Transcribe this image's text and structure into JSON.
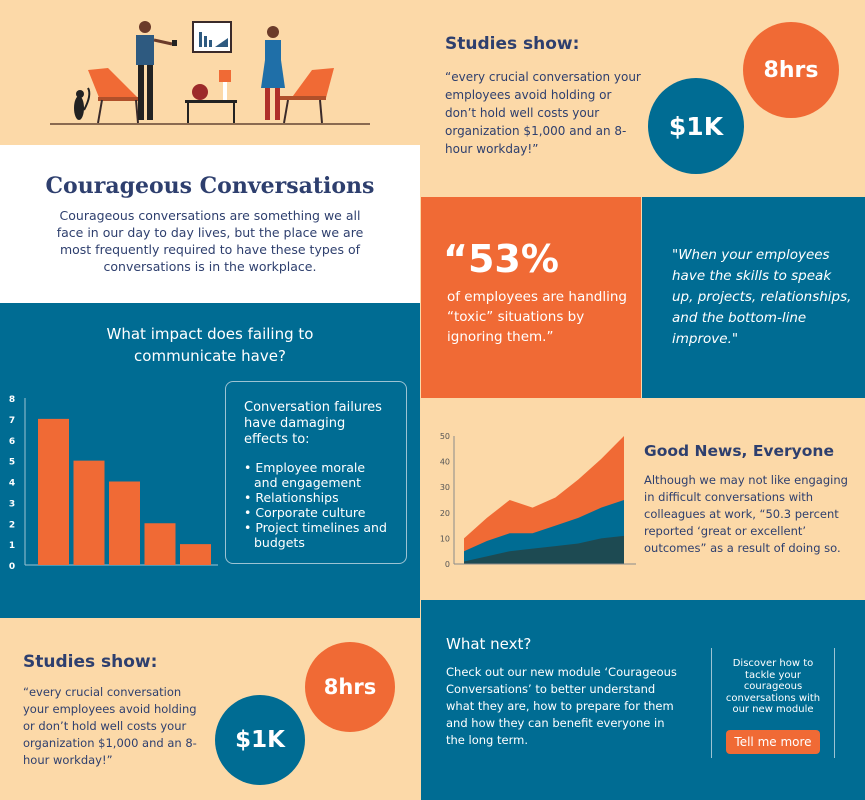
{
  "hero": {
    "title": "Courageous Conversations",
    "intro": "Courageous conversations are something we all face in our day to day lives, but the place we are most frequently required to have these types of conversations is in the workplace."
  },
  "impact": {
    "heading": "What impact does failing to communicate have?",
    "box_title": "Conversation failures have damaging effects to:",
    "effects": [
      "Employee morale and engagement",
      "Relationships",
      "Corporate culture",
      "Project timelines and budgets"
    ]
  },
  "studies_top": {
    "heading": "Studies show:",
    "quote": "“every crucial conversation your employees avoid holding or don’t hold well costs your organization $1,000 and an 8-hour workday!”",
    "stat_hours": "8hrs",
    "stat_cost": "$1K"
  },
  "studies_bottom": {
    "heading": "Studies show:",
    "quote": "“every crucial conversation your employees avoid holding or don’t hold well costs your organization $1,000 and an 8-hour workday!”",
    "stat_hours": "8hrs",
    "stat_cost": "$1K"
  },
  "toxic": {
    "stat": "“53%",
    "text": "of employees are handling “toxic” situations by ignoring them.”"
  },
  "skills_quote": "\"When your employees have the skills to speak up, projects, relationships, and the bottom-line improve.\"",
  "good_news": {
    "heading": "Good News, Everyone",
    "text": "Although we may not like engaging in difficult conversations with colleagues at work, “50.3 percent reported ‘great or excellent’ outcomes” as a result of doing so."
  },
  "what_next": {
    "heading": "What next?",
    "text": "Check out our new module ‘Courageous Conversations’ to better understand what they are, how to prepare for them and how they can benefit everyone in the long term.",
    "cta_text": "Discover how to tackle your courageous conversations with our new module",
    "cta_button": "Tell me more"
  },
  "colors": {
    "peach": "#fcd9a8",
    "blue": "#006c93",
    "orange": "#f06a35",
    "navy": "#2e3f6e",
    "dark_teal": "#1d4a52"
  },
  "chart_data": [
    {
      "type": "bar",
      "values": [
        7,
        5,
        4,
        2,
        1
      ],
      "ylim": [
        0,
        8
      ],
      "yticks": [
        0,
        1,
        2,
        3,
        4,
        5,
        6,
        7,
        8
      ],
      "color": "#f06a35",
      "grid": false
    },
    {
      "type": "area",
      "stacked": true,
      "ylim": [
        0,
        50
      ],
      "yticks": [
        0,
        10,
        20,
        30,
        40,
        50
      ],
      "grid": false,
      "series": [
        {
          "values": [
            1,
            3,
            5,
            6,
            7,
            8,
            10,
            11
          ],
          "color": "#1d4a52"
        },
        {
          "values": [
            4,
            6,
            7,
            6,
            8,
            10,
            12,
            14
          ],
          "color": "#006c93"
        },
        {
          "values": [
            5,
            9,
            13,
            10,
            11,
            15,
            19,
            25
          ],
          "color": "#f06a35"
        }
      ]
    }
  ]
}
